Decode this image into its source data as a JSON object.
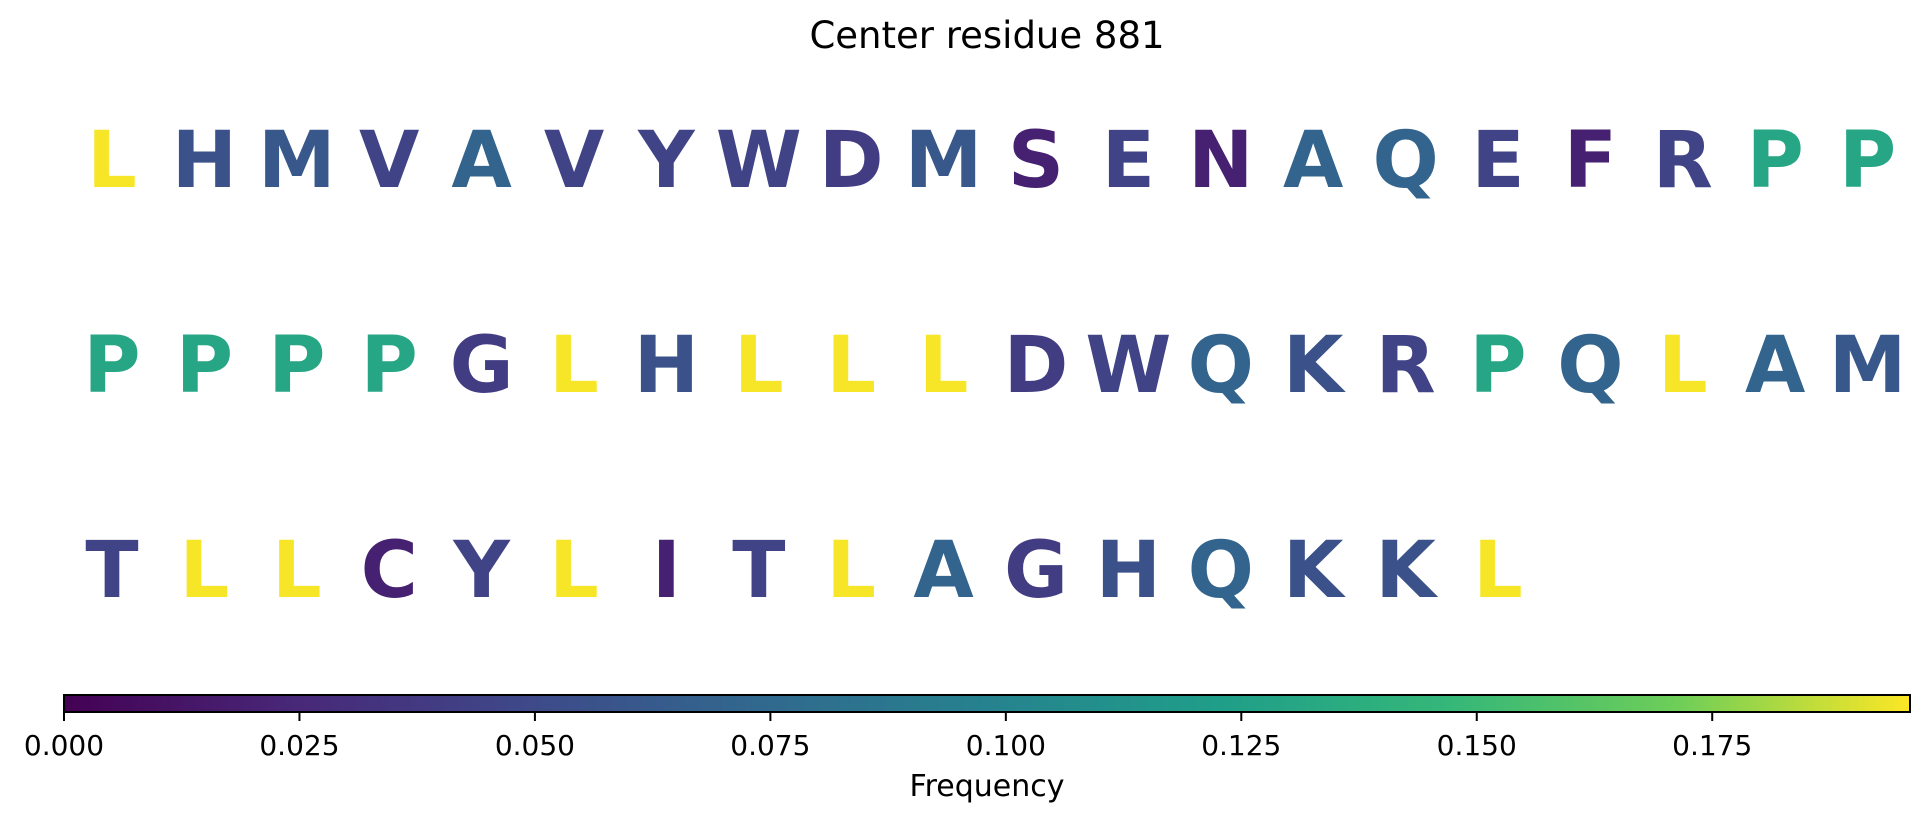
{
  "chart_data": {
    "type": "sequence-logo",
    "title": "Center residue 881",
    "rows": [
      {
        "residues": [
          "L",
          "H",
          "M",
          "V",
          "A",
          "V",
          "Y",
          "W",
          "D",
          "M",
          "S",
          "E",
          "N",
          "A",
          "Q",
          "E",
          "F",
          "R",
          "P",
          "P"
        ],
        "frequencies": [
          0.195,
          0.055,
          0.06,
          0.045,
          0.07,
          0.045,
          0.045,
          0.045,
          0.04,
          0.06,
          0.02,
          0.045,
          0.02,
          0.07,
          0.07,
          0.045,
          0.02,
          0.045,
          0.13,
          0.13
        ]
      },
      {
        "residues": [
          "P",
          "P",
          "P",
          "P",
          "G",
          "L",
          "H",
          "L",
          "L",
          "L",
          "D",
          "W",
          "Q",
          "K",
          "R",
          "P",
          "Q",
          "L",
          "A",
          "M"
        ],
        "frequencies": [
          0.13,
          0.13,
          0.13,
          0.13,
          0.04,
          0.195,
          0.055,
          0.195,
          0.195,
          0.195,
          0.04,
          0.045,
          0.07,
          0.055,
          0.045,
          0.13,
          0.07,
          0.195,
          0.07,
          0.06
        ]
      },
      {
        "residues": [
          "T",
          "L",
          "L",
          "C",
          "Y",
          "L",
          "I",
          "T",
          "L",
          "A",
          "G",
          "H",
          "Q",
          "K",
          "K",
          "L"
        ],
        "frequencies": [
          0.045,
          0.195,
          0.195,
          0.02,
          0.045,
          0.195,
          0.02,
          0.045,
          0.195,
          0.07,
          0.04,
          0.055,
          0.07,
          0.055,
          0.055,
          0.195
        ]
      }
    ],
    "colorbar": {
      "label": "Frequency",
      "colormap": "viridis",
      "range": [
        0,
        0.196
      ],
      "ticks": [
        0.0,
        0.025,
        0.05,
        0.075,
        0.1,
        0.125,
        0.15,
        0.175
      ],
      "tick_labels": [
        "0.000",
        "0.025",
        "0.050",
        "0.075",
        "0.100",
        "0.125",
        "0.150",
        "0.175"
      ]
    }
  }
}
